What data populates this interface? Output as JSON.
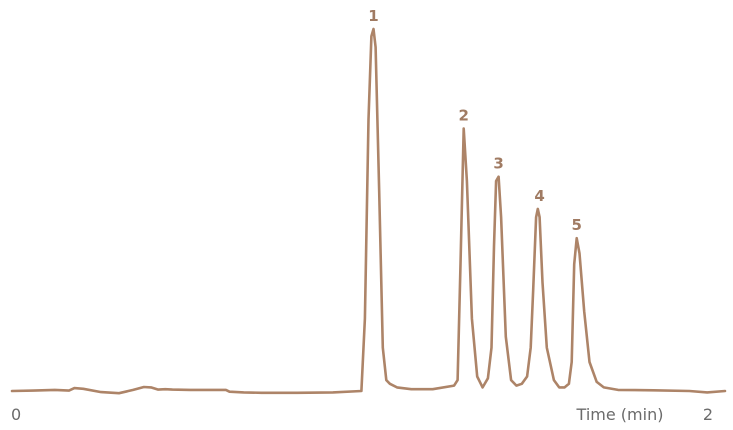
{
  "chart_data": {
    "type": "line",
    "title": "",
    "xlabel": "Time (min)",
    "ylabel": "",
    "xlim": [
      0,
      2
    ],
    "ylim": [
      0,
      100
    ],
    "x_tick_labels": [
      "0",
      "2"
    ],
    "grid": false,
    "legend": "none",
    "colors": {
      "trace": "#ad8468",
      "peak_label": "#a07b63",
      "axis_text": "#6b6b6b"
    },
    "peaks": [
      {
        "label": "1",
        "time": 1.014,
        "height": 100
      },
      {
        "label": "2",
        "time": 1.267,
        "height": 72.5
      },
      {
        "label": "3",
        "time": 1.365,
        "height": 59.2
      },
      {
        "label": "4",
        "time": 1.48,
        "height": 50.3
      },
      {
        "label": "5",
        "time": 1.584,
        "height": 42.2
      }
    ],
    "series": [
      {
        "x": [
          0,
          0.06,
          0.12,
          0.16,
          0.175,
          0.2,
          0.25,
          0.3,
          0.34,
          0.37,
          0.39,
          0.41,
          0.43,
          0.45,
          0.5,
          0.55,
          0.6,
          0.61,
          0.65,
          0.7,
          0.8,
          0.9,
          0.98,
          0.99,
          1.0,
          1.008,
          1.014,
          1.02,
          1.03,
          1.04,
          1.05,
          1.06,
          1.08,
          1.12,
          1.18,
          1.24,
          1.25,
          1.258,
          1.267,
          1.276,
          1.29,
          1.305,
          1.32,
          1.335,
          1.345,
          1.352,
          1.358,
          1.365,
          1.372,
          1.385,
          1.4,
          1.415,
          1.43,
          1.445,
          1.455,
          1.462,
          1.47,
          1.475,
          1.48,
          1.488,
          1.5,
          1.52,
          1.535,
          1.55,
          1.562,
          1.57,
          1.577,
          1.584,
          1.592,
          1.605,
          1.62,
          1.64,
          1.66,
          1.7,
          1.8,
          1.9,
          1.95,
          2.0
        ],
        "y": [
          0,
          0.1,
          0.3,
          0.1,
          0.8,
          0.6,
          -0.3,
          -0.6,
          0.3,
          1.1,
          1.0,
          0.4,
          0.5,
          0.4,
          0.3,
          0.3,
          0.3,
          -0.2,
          -0.4,
          -0.5,
          -0.5,
          -0.4,
          0.0,
          20.0,
          75.0,
          98.0,
          100.0,
          95.0,
          55.0,
          12.0,
          3.0,
          2.0,
          1.0,
          0.5,
          0.5,
          1.5,
          3.0,
          35.0,
          72.5,
          58.0,
          20.0,
          4.0,
          1.0,
          3.5,
          12.0,
          40.0,
          58.0,
          59.2,
          48.0,
          15.0,
          3.0,
          1.5,
          2.0,
          4.0,
          12.0,
          28.0,
          48.0,
          50.3,
          48.0,
          30.0,
          12.0,
          3.0,
          1.0,
          1.0,
          2.0,
          8.0,
          35.0,
          42.2,
          38.0,
          22.0,
          8.0,
          2.5,
          1.0,
          0.3,
          0.2,
          0.0,
          -0.4,
          0.0
        ]
      }
    ]
  }
}
